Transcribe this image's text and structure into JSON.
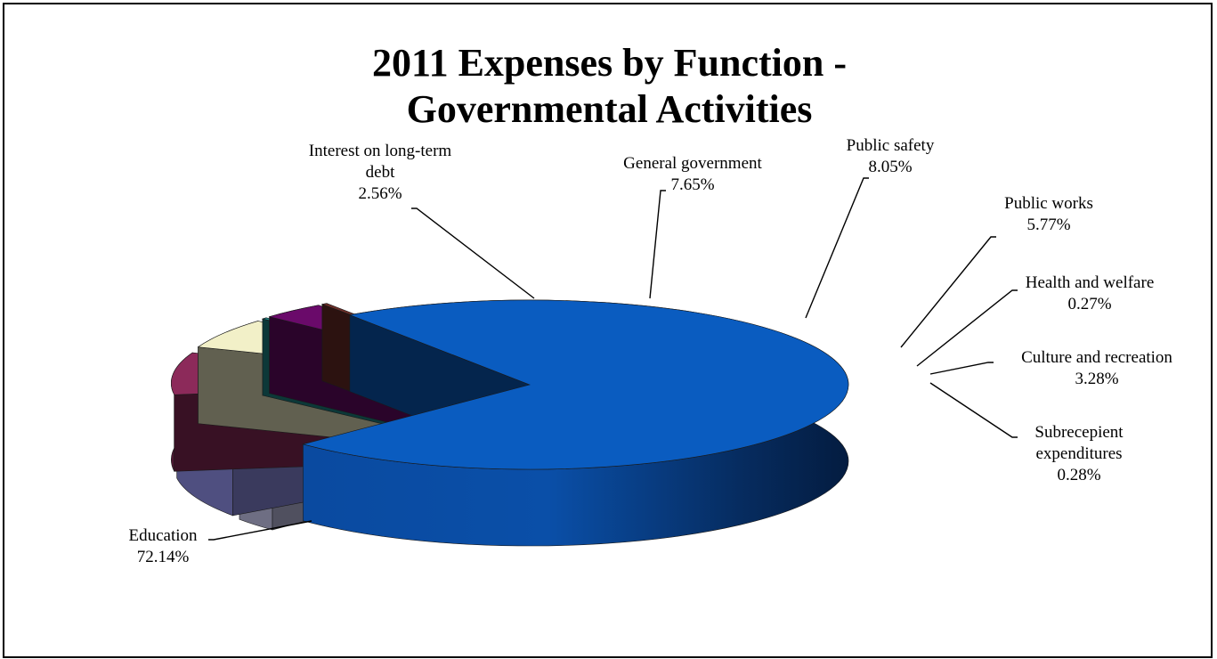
{
  "chart_data": {
    "type": "pie",
    "title_lines": [
      "2011 Expenses by Function -",
      "Governmental Activities"
    ],
    "slices": [
      {
        "label_lines": [
          "Education"
        ],
        "pct_label": "72.14%",
        "value": 72.14,
        "color": "#0a5cc0"
      },
      {
        "label_lines": [
          "Interest on long-term",
          "debt"
        ],
        "pct_label": "2.56%",
        "value": 2.56,
        "color": "#c8c8ee"
      },
      {
        "label_lines": [
          "General government"
        ],
        "pct_label": "7.65%",
        "value": 7.65,
        "color": "#9090e8"
      },
      {
        "label_lines": [
          "Public safety"
        ],
        "pct_label": "8.05%",
        "value": 8.05,
        "color": "#8c2a5a"
      },
      {
        "label_lines": [
          "Public works"
        ],
        "pct_label": "5.77%",
        "value": 5.77,
        "color": "#f2f0c8"
      },
      {
        "label_lines": [
          "Health and welfare"
        ],
        "pct_label": "0.27%",
        "value": 0.27,
        "color": "#1e8c8c"
      },
      {
        "label_lines": [
          "Culture and recreation"
        ],
        "pct_label": "3.28%",
        "value": 3.28,
        "color": "#6a0a6a"
      },
      {
        "label_lines": [
          "Subrecepient",
          "expenditures"
        ],
        "pct_label": "0.28%",
        "value": 0.28,
        "color": "#6e2e28"
      }
    ],
    "style": "3d-exploded"
  }
}
